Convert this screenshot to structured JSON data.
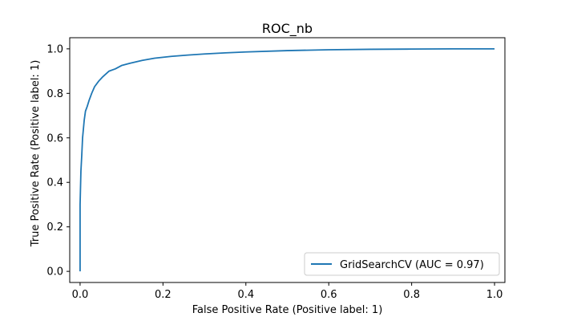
{
  "chart_data": {
    "type": "line",
    "title": "ROC_nb",
    "xlabel": "False Positive Rate (Positive label: 1)",
    "ylabel": "True Positive Rate (Positive label: 1)",
    "xlim": [
      -0.025,
      1.025
    ],
    "ylim": [
      -0.05,
      1.05
    ],
    "xticks": [
      0.0,
      0.2,
      0.4,
      0.6,
      0.8,
      1.0
    ],
    "xtick_labels": [
      "0.0",
      "0.2",
      "0.4",
      "0.6",
      "0.8",
      "1.0"
    ],
    "yticks": [
      0.0,
      0.2,
      0.4,
      0.6,
      0.8,
      1.0
    ],
    "ytick_labels": [
      "0.0",
      "0.2",
      "0.4",
      "0.6",
      "0.8",
      "1.0"
    ],
    "grid": false,
    "legend_position": "lower-right",
    "series": [
      {
        "name": "GridSearchCV (AUC = 0.97)",
        "color": "#1f77b4",
        "x": [
          0.0,
          0.0,
          0.002,
          0.004,
          0.006,
          0.008,
          0.01,
          0.013,
          0.017,
          0.022,
          0.028,
          0.035,
          0.045,
          0.055,
          0.07,
          0.085,
          0.1,
          0.12,
          0.15,
          0.18,
          0.22,
          0.26,
          0.3,
          0.35,
          0.4,
          0.5,
          0.6,
          0.7,
          0.8,
          0.9,
          1.0
        ],
        "y": [
          0.0,
          0.3,
          0.45,
          0.52,
          0.6,
          0.64,
          0.68,
          0.72,
          0.74,
          0.77,
          0.8,
          0.83,
          0.855,
          0.875,
          0.9,
          0.91,
          0.925,
          0.935,
          0.948,
          0.958,
          0.966,
          0.972,
          0.977,
          0.982,
          0.986,
          0.992,
          0.996,
          0.998,
          0.999,
          1.0,
          1.0
        ]
      }
    ]
  }
}
